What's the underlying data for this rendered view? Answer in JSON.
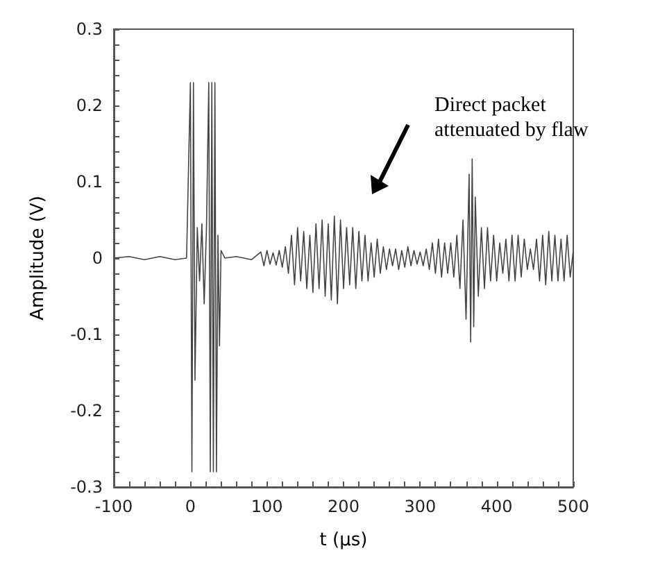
{
  "chart_data": {
    "type": "line",
    "xlabel": "t (μs)",
    "ylabel": "Amplitude (V)",
    "annotations": [
      "Direct packet\nattenuated by flaw"
    ],
    "xlim": [
      -100,
      500
    ],
    "xticks": [
      -100,
      {
        "value": -80,
        "label": null
      },
      {
        "value": -60,
        "label": null
      },
      {
        "value": -40,
        "label": null
      },
      {
        "value": -20,
        "label": null
      },
      0,
      {
        "value": 20,
        "label": null
      },
      {
        "value": 40,
        "label": null
      },
      {
        "value": 60,
        "label": null
      },
      {
        "value": 80,
        "label": null
      },
      100,
      {
        "value": 120,
        "label": null
      },
      {
        "value": 140,
        "label": null
      },
      {
        "value": 160,
        "label": null
      },
      {
        "value": 180,
        "label": null
      },
      200,
      {
        "value": 220,
        "label": null
      },
      {
        "value": 240,
        "label": null
      },
      {
        "value": 260,
        "label": null
      },
      {
        "value": 280,
        "label": null
      },
      300,
      {
        "value": 320,
        "label": null
      },
      {
        "value": 340,
        "label": null
      },
      {
        "value": 360,
        "label": null
      },
      {
        "value": 380,
        "label": null
      },
      400,
      {
        "value": 420,
        "label": null
      },
      {
        "value": 440,
        "label": null
      },
      {
        "value": 460,
        "label": null
      },
      {
        "value": 480,
        "label": null
      },
      500
    ],
    "ylim": [
      -0.3,
      0.3
    ],
    "yticks": [
      -0.3,
      {
        "value": -0.28,
        "label": null
      },
      {
        "value": -0.26,
        "label": null
      },
      {
        "value": -0.24,
        "label": null
      },
      {
        "value": -0.22,
        "label": null
      },
      -0.2,
      {
        "value": -0.18,
        "label": null
      },
      {
        "value": -0.16,
        "label": null
      },
      {
        "value": -0.14,
        "label": null
      },
      {
        "value": -0.12,
        "label": null
      },
      -0.1,
      {
        "value": -0.08,
        "label": null
      },
      {
        "value": -0.06,
        "label": null
      },
      {
        "value": -0.04,
        "label": null
      },
      {
        "value": -0.02,
        "label": null
      },
      0,
      {
        "value": 0.02,
        "label": null
      },
      {
        "value": 0.04,
        "label": null
      },
      {
        "value": 0.06,
        "label": null
      },
      {
        "value": 0.08,
        "label": null
      },
      0.1,
      {
        "value": 0.12,
        "label": null
      },
      {
        "value": 0.14,
        "label": null
      },
      {
        "value": 0.16,
        "label": null
      },
      {
        "value": 0.18,
        "label": null
      },
      0.2,
      {
        "value": 0.22,
        "label": null
      },
      {
        "value": 0.24,
        "label": null
      },
      {
        "value": 0.26,
        "label": null
      },
      {
        "value": 0.28,
        "label": null
      },
      0.3
    ],
    "grid": false,
    "marker": "none",
    "line_style": "solid",
    "series": [
      {
        "color": "#444444",
        "x": [
          -100,
          -80,
          -60,
          -40,
          -20,
          -5,
          0,
          2,
          4,
          6,
          9,
          12,
          15,
          18,
          21,
          24,
          26,
          28,
          30,
          32,
          34,
          36,
          38,
          40,
          45,
          60,
          80,
          92,
          96,
          100,
          104,
          108,
          112,
          116,
          120,
          124,
          128,
          132,
          136,
          140,
          144,
          148,
          152,
          156,
          160,
          164,
          168,
          172,
          176,
          180,
          184,
          188,
          192,
          196,
          200,
          204,
          208,
          212,
          216,
          220,
          224,
          228,
          232,
          236,
          240,
          244,
          248,
          252,
          256,
          260,
          264,
          268,
          272,
          276,
          280,
          284,
          288,
          292,
          296,
          300,
          304,
          308,
          312,
          316,
          320,
          324,
          328,
          332,
          336,
          340,
          344,
          348,
          352,
          356,
          360,
          364,
          366,
          368,
          370,
          372,
          376,
          380,
          384,
          388,
          392,
          396,
          400,
          404,
          408,
          412,
          416,
          420,
          424,
          428,
          432,
          436,
          440,
          444,
          448,
          452,
          456,
          460,
          464,
          468,
          472,
          476,
          480,
          484,
          488,
          492,
          496,
          500
        ],
        "values": [
          0,
          0.002,
          -0.002,
          0.002,
          -0.002,
          0,
          0.23,
          -0.28,
          0.23,
          -0.16,
          0.04,
          -0.03,
          0.045,
          -0.06,
          0.04,
          0.23,
          -0.28,
          0.23,
          -0.28,
          0.23,
          -0.28,
          0.03,
          -0.115,
          0.01,
          0,
          0.002,
          -0.002,
          0.008,
          -0.01,
          0.01,
          -0.008,
          0.007,
          -0.009,
          0.01,
          -0.012,
          0.015,
          -0.02,
          0.03,
          -0.035,
          0.04,
          -0.03,
          0.035,
          -0.04,
          0.03,
          -0.045,
          0.045,
          -0.04,
          0.05,
          -0.05,
          0.045,
          -0.055,
          0.055,
          -0.06,
          0.05,
          -0.04,
          0.04,
          -0.035,
          0.04,
          -0.04,
          0.035,
          -0.03,
          0.03,
          -0.03,
          0.02,
          -0.025,
          0.025,
          -0.02,
          0.015,
          -0.015,
          0.012,
          -0.01,
          0.012,
          -0.015,
          0.01,
          -0.012,
          0.015,
          -0.01,
          0.01,
          -0.008,
          0.008,
          -0.01,
          0.012,
          -0.015,
          0.02,
          -0.02,
          0.025,
          -0.025,
          0.02,
          -0.02,
          0.02,
          -0.025,
          0.03,
          -0.04,
          0.05,
          -0.08,
          0.11,
          -0.11,
          0.13,
          -0.09,
          0.08,
          -0.05,
          0.04,
          -0.04,
          0.04,
          -0.03,
          0.03,
          -0.03,
          0.02,
          -0.02,
          0.025,
          -0.03,
          0.03,
          -0.03,
          0.03,
          -0.025,
          0.025,
          -0.015,
          0.012,
          -0.015,
          0.025,
          -0.03,
          0.03,
          -0.035,
          0.035,
          -0.03,
          0.03,
          -0.03,
          0.025,
          -0.03,
          0.03,
          -0.025,
          0.01
        ]
      }
    ]
  }
}
